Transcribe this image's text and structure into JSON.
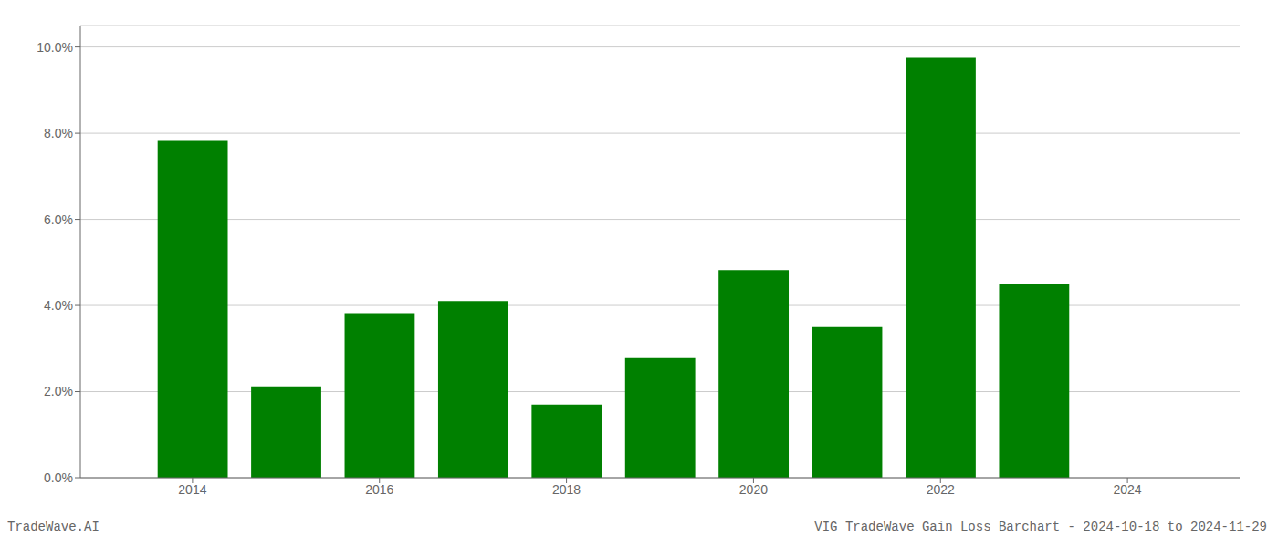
{
  "chart_data": {
    "type": "bar",
    "title": "VIG TradeWave Gain Loss Barchart - 2024-10-18 to 2024-11-29",
    "annotations": [
      "TradeWave.AI"
    ],
    "x": [
      2014,
      2015,
      2016,
      2017,
      2018,
      2019,
      2020,
      2021,
      2022,
      2023
    ],
    "values": [
      0.0782,
      0.0212,
      0.0382,
      0.041,
      0.017,
      0.0278,
      0.0482,
      0.035,
      0.0975,
      0.045
    ],
    "color": "#008000",
    "xlim": [
      2012.8,
      2025.2
    ],
    "xticks": [
      2014,
      2016,
      2018,
      2020,
      2022,
      2024
    ],
    "ylim": [
      0,
      0.105
    ],
    "yticks": [
      {
        "value": 0.0,
        "label": "0.0%"
      },
      {
        "value": 0.02,
        "label": "2.0%"
      },
      {
        "value": 0.04,
        "label": "4.0%"
      },
      {
        "value": 0.06,
        "label": "6.0%"
      },
      {
        "value": 0.08,
        "label": "8.0%"
      },
      {
        "value": 0.1,
        "label": "10.0%"
      }
    ],
    "grid": true
  }
}
